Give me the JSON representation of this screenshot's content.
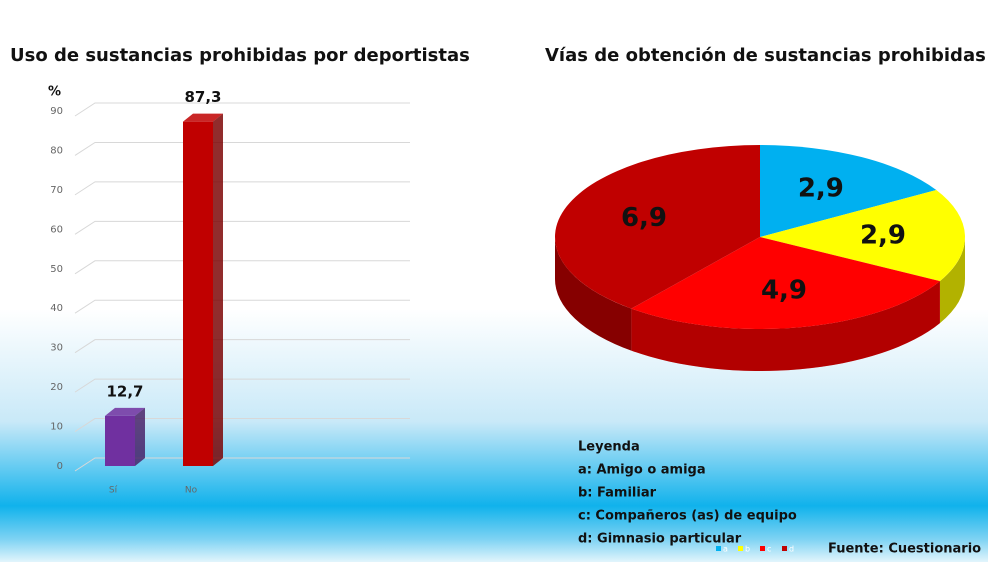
{
  "chart_data": [
    {
      "type": "bar",
      "title": "Uso de sustancias prohibidas por deportistas",
      "y_label": "%",
      "categories": [
        "Sí",
        "No"
      ],
      "values": [
        12.7,
        87.3
      ],
      "value_labels": [
        "12,7",
        "87,3"
      ],
      "colors": [
        "#7030a0",
        "#c00000"
      ],
      "ylim": [
        0,
        90
      ],
      "yticks": [
        0,
        10,
        20,
        30,
        40,
        50,
        60,
        70,
        80,
        90
      ],
      "grid": true
    },
    {
      "type": "pie",
      "title": "Vías de obtención de sustancias prohibidas",
      "categories": [
        "a",
        "b",
        "c",
        "d"
      ],
      "values": [
        2.9,
        2.9,
        4.9,
        6.9
      ],
      "value_labels": [
        "2,9",
        "2,9",
        "4,9",
        "6,9"
      ],
      "colors": [
        "#00b0f0",
        "#ffff00",
        "#ff0000",
        "#c00000"
      ],
      "legend_title": "Leyenda",
      "legend_items": [
        "a: Amigo o amiga",
        "b: Familiar",
        "c: Compañeros (as) de equipo",
        "d: Gimnasio particular"
      ],
      "source": "Fuente: Cuestionario"
    }
  ]
}
